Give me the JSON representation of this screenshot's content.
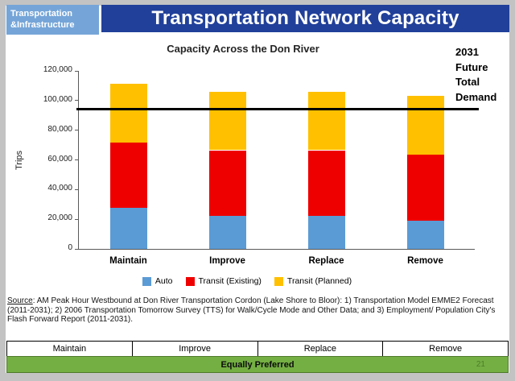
{
  "header": {
    "badge_line1": "Transportation",
    "badge_line2": "&Infrastructure",
    "title": "Transportation Network Capacity"
  },
  "chart_data": {
    "type": "bar",
    "stacked": true,
    "title": "Capacity Across the Don River",
    "xlabel": "",
    "ylabel": "Trips",
    "ylim": [
      0,
      120000
    ],
    "ytick_labels": [
      "0",
      "20,000",
      "40,000",
      "60,000",
      "80,000",
      "100,000",
      "120,000"
    ],
    "grid": false,
    "legend_position": "bottom",
    "categories": [
      "Maintain",
      "Improve",
      "Replace",
      "Remove"
    ],
    "series": [
      {
        "name": "Auto",
        "color": "#5B9BD5",
        "values": [
          27500,
          22500,
          22500,
          19000
        ]
      },
      {
        "name": "Transit (Existing)",
        "color": "#EF0000",
        "values": [
          44000,
          44000,
          44000,
          44500
        ]
      },
      {
        "name": "Transit (Planned)",
        "color": "#FFC000",
        "values": [
          40000,
          39500,
          39500,
          39500
        ]
      }
    ],
    "reference_line": {
      "value": 94000,
      "label": "2031 Future Total Demand"
    }
  },
  "annotation": {
    "lines": [
      "2031",
      "Future",
      "Total",
      "Demand"
    ]
  },
  "source": {
    "label": "Source",
    "text": ": AM Peak Hour Westbound at Don River Transportation Cordon (Lake Shore to Bloor): 1) Transportation Model EMME2 Forecast (2011-2031); 2) 2006 Transportation Tomorrow Survey (TTS) for Walk/Cycle Mode and Other Data; and 3) Employment/ Population City's Flash Forward Report (2011-2031)."
  },
  "options_table": [
    "Maintain",
    "Improve",
    "Replace",
    "Remove"
  ],
  "footer": {
    "preference": "Equally Preferred",
    "page_number": "21"
  },
  "colors": {
    "banner_blue": "#21409A",
    "badge_blue": "#75A5D8",
    "auto_blue": "#5B9BD5",
    "transit_existing_red": "#EF0000",
    "transit_planned_yellow": "#FFC000",
    "preferred_green": "#74AF43",
    "demand_line": "#000000",
    "frame_grey": "#C3C3C3"
  }
}
